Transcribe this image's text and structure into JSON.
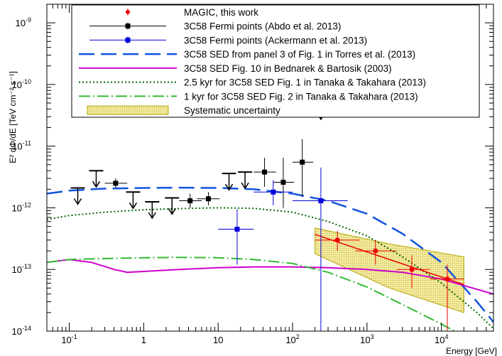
{
  "chart_data": {
    "type": "scatter",
    "xlabel": "Energy [GeV]",
    "ylabel": "E² dΦ/dE [TeV cm⁻² s⁻¹]",
    "xscale": "log",
    "yscale": "log",
    "xlim": [
      0.05,
      50000
    ],
    "ylim": [
      1e-14,
      2e-09
    ],
    "x_ticks": [
      {
        "v": 0.1,
        "base": "10",
        "exp": "-1"
      },
      {
        "v": 1,
        "base": "1",
        "exp": ""
      },
      {
        "v": 10,
        "base": "10",
        "exp": ""
      },
      {
        "v": 100,
        "base": "10",
        "exp": "2"
      },
      {
        "v": 1000,
        "base": "10",
        "exp": "3"
      },
      {
        "v": 10000,
        "base": "10",
        "exp": "4"
      }
    ],
    "y_ticks": [
      {
        "v": 1e-14,
        "base": "10",
        "exp": "-14"
      },
      {
        "v": 1e-13,
        "base": "10",
        "exp": "-13"
      },
      {
        "v": 1e-12,
        "base": "10",
        "exp": "-12"
      },
      {
        "v": 1e-11,
        "base": "10",
        "exp": "-11"
      },
      {
        "v": 1e-10,
        "base": "10",
        "exp": "-10"
      },
      {
        "v": 1e-09,
        "base": "10",
        "exp": "-9"
      }
    ],
    "legend_position": "top",
    "series": [
      {
        "name": "MAGIC, this work",
        "color": "#ee0000",
        "kind": "points",
        "marker": "circle",
        "points": [
          {
            "x": 400,
            "y": 3e-13,
            "xlo": 200,
            "xhi": 800,
            "ylo": 2e-13,
            "yhi": 4.2e-13
          },
          {
            "x": 1300,
            "y": 2e-13,
            "xlo": 700,
            "xhi": 2500,
            "ylo": 1.2e-13,
            "yhi": 3e-13
          },
          {
            "x": 4000,
            "y": 1e-13,
            "xlo": 2500,
            "xhi": 7000,
            "ylo": 5e-14,
            "yhi": 1.7e-13
          },
          {
            "x": 12000,
            "y": 7e-14,
            "xlo": 7000,
            "xhi": 20000,
            "ylo": 1e-14,
            "yhi": 1.2e-13
          }
        ]
      },
      {
        "name": "3C58 Fermi points (Abdo et al. 2013)",
        "color": "#000000",
        "kind": "points",
        "marker": "square",
        "points": [
          {
            "x": 0.42,
            "y": 2.5e-12,
            "xlo": 0.3,
            "xhi": 0.6,
            "ylo": 2.1e-12,
            "yhi": 3e-12
          },
          {
            "x": 4.2,
            "y": 1.3e-12,
            "xlo": 3.0,
            "xhi": 6.0,
            "ylo": 1e-12,
            "yhi": 1.7e-12
          },
          {
            "x": 7.4,
            "y": 1.4e-12,
            "xlo": 5.2,
            "xhi": 10.5,
            "ylo": 1.1e-12,
            "yhi": 1.8e-12
          },
          {
            "x": 42,
            "y": 3.8e-12,
            "xlo": 30,
            "xhi": 60,
            "ylo": 2.2e-12,
            "yhi": 6.5e-12
          },
          {
            "x": 75,
            "y": 2.6e-12,
            "xlo": 55,
            "xhi": 105,
            "ylo": 1e-12,
            "yhi": 6.5e-12
          },
          {
            "x": 135,
            "y": 5.5e-12,
            "xlo": 100,
            "xhi": 190,
            "ylo": 1.5e-12,
            "yhi": 1.3e-11
          }
        ]
      },
      {
        "name": "3C58 Fermi points (Ackermann et al. 2013)",
        "color": "#0000dd",
        "kind": "points",
        "marker": "square",
        "points": [
          {
            "x": 18,
            "y": 4.5e-13,
            "xlo": 10,
            "xhi": 30,
            "ylo": 1.2e-13,
            "yhi": 9.5e-13
          },
          {
            "x": 55,
            "y": 1.8e-12,
            "xlo": 30,
            "xhi": 100,
            "ylo": 1.1e-12,
            "yhi": 2.8e-12
          },
          {
            "x": 240,
            "y": 1.3e-12,
            "xlo": 100,
            "xhi": 550,
            "ylo": 1e-14,
            "yhi": 4.5e-12
          }
        ]
      },
      {
        "name": "3C58 SED from panel 3 of Fig. 1 in Torres et al. (2013)",
        "color": "#1155dd",
        "kind": "curve",
        "dash": "22,9",
        "width": 2.5,
        "points": [
          [
            0.05,
            1.7e-12
          ],
          [
            0.1,
            1.9e-12
          ],
          [
            0.3,
            2.05e-12
          ],
          [
            1,
            2.1e-12
          ],
          [
            3,
            2.12e-12
          ],
          [
            10,
            2.1e-12
          ],
          [
            30,
            2e-12
          ],
          [
            100,
            1.7e-12
          ],
          [
            300,
            1.3e-12
          ],
          [
            1000,
            8e-13
          ],
          [
            3000,
            3.8e-13
          ],
          [
            10000,
            1.3e-13
          ],
          [
            30000,
            3e-14
          ],
          [
            50000,
            1.4e-14
          ]
        ]
      },
      {
        "name": "3C58 SED Fig. 10 in Bednarek & Bartosik (2003)",
        "color": "#cc00cc",
        "kind": "curve",
        "dash": "",
        "width": 2,
        "points": [
          [
            0.05,
            1.3e-13
          ],
          [
            0.1,
            1.45e-13
          ],
          [
            0.2,
            1.3e-13
          ],
          [
            0.4,
            1e-13
          ],
          [
            0.6,
            9e-14
          ],
          [
            1,
            9.3e-14
          ],
          [
            3,
            1e-13
          ],
          [
            10,
            1.07e-13
          ],
          [
            30,
            1.1e-13
          ],
          [
            100,
            1.1e-13
          ],
          [
            300,
            1.07e-13
          ],
          [
            1000,
            1e-13
          ],
          [
            3000,
            9e-14
          ],
          [
            10000,
            7e-14
          ],
          [
            20000,
            5.5e-14
          ],
          [
            50000,
            4e-14
          ]
        ]
      },
      {
        "name": "2.5 kyr for 3C58 SED Fig. 1 in Tanaka & Takahara (2013)",
        "color": "#006600",
        "kind": "curve",
        "dash": "2,3",
        "width": 2,
        "points": [
          [
            0.05,
            6.5e-13
          ],
          [
            0.1,
            7.5e-13
          ],
          [
            0.3,
            8.5e-13
          ],
          [
            1,
            9.3e-13
          ],
          [
            3,
            9.7e-13
          ],
          [
            10,
            1e-12
          ],
          [
            30,
            9.8e-13
          ],
          [
            100,
            8.5e-13
          ],
          [
            300,
            6e-13
          ],
          [
            1000,
            3.5e-13
          ],
          [
            3000,
            1.6e-13
          ],
          [
            10000,
            6e-14
          ],
          [
            30000,
            2e-14
          ],
          [
            50000,
            1.1e-14
          ]
        ]
      },
      {
        "name": "1 kyr for 3C58 SED Fig. 2 in Tanaka & Takahara (2013)",
        "color": "#33bb33",
        "kind": "curve",
        "dash": "16,4,2,4",
        "width": 2,
        "points": [
          [
            0.05,
            1.3e-13
          ],
          [
            0.1,
            1.45e-13
          ],
          [
            0.3,
            1.5e-13
          ],
          [
            1,
            1.55e-13
          ],
          [
            3,
            1.57e-13
          ],
          [
            10,
            1.55e-13
          ],
          [
            30,
            1.45e-13
          ],
          [
            100,
            1.25e-13
          ],
          [
            300,
            9e-14
          ],
          [
            1000,
            5.2e-14
          ],
          [
            3000,
            2.7e-14
          ],
          [
            10000,
            1.3e-14
          ],
          [
            15000,
            1e-14
          ]
        ]
      },
      {
        "name": "Systematic uncertainty",
        "color": "#b5a500",
        "fill": "#f2e9a0",
        "kind": "band",
        "upper": [
          [
            200,
            4.7e-13
          ],
          [
            2000,
            2.6e-13
          ],
          [
            20000,
            1.6e-13
          ]
        ],
        "lower": [
          [
            200,
            1.8e-13
          ],
          [
            2000,
            5e-14
          ],
          [
            20000,
            2e-14
          ]
        ]
      }
    ],
    "fit_line": {
      "color": "#ee0000",
      "points": [
        [
          200,
          3.7e-13
        ],
        [
          20000,
          5.7e-14
        ]
      ]
    },
    "upper_limits": [
      {
        "x": 0.13,
        "y": 2.1e-12
      },
      {
        "x": 0.23,
        "y": 4e-12
      },
      {
        "x": 0.72,
        "y": 1.8e-12
      },
      {
        "x": 1.3,
        "y": 1.25e-12
      },
      {
        "x": 2.4,
        "y": 1.45e-12
      },
      {
        "x": 14,
        "y": 3.6e-12
      },
      {
        "x": 23,
        "y": 3.8e-12
      },
      {
        "x": 240,
        "y": 5e-11
      }
    ]
  }
}
